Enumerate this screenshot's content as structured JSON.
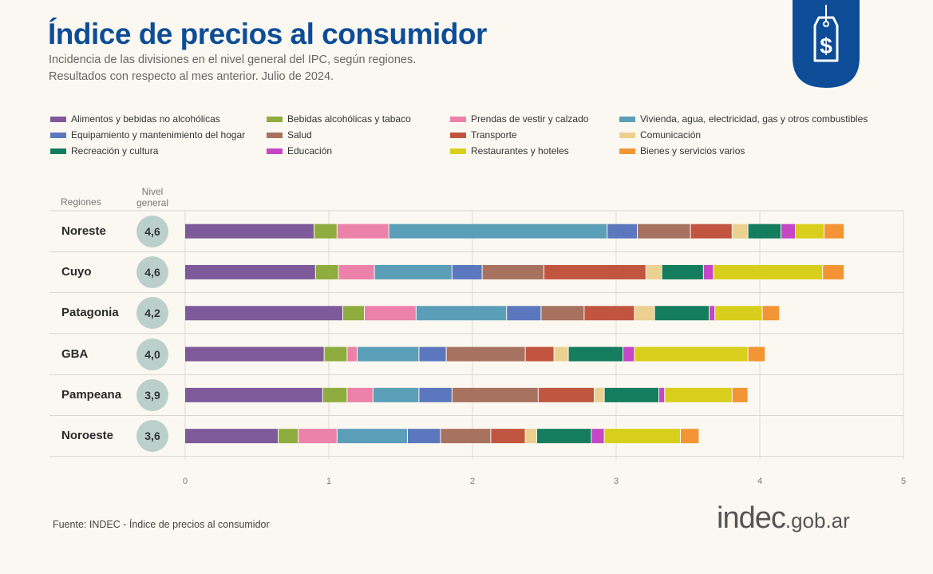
{
  "title": "Índice de precios al consumidor",
  "subtitle_1": "Incidencia de las divisiones en el nivel general del IPC, según regiones.",
  "subtitle_2": "Resultados con respecto al mes anterior. Julio de 2024.",
  "badge_icon": "price-tag-dollar-icon",
  "header": {
    "regions": "Regiones",
    "level_1": "Nivel",
    "level_2": "general"
  },
  "source": "Fuente: INDEC - Índice de precios al consumidor",
  "logo": {
    "main": "indec",
    "suffix": ".gob.ar"
  },
  "colors": {
    "title": "#0d4d98",
    "badge": "#0d4d98",
    "circle": "#bcd0cb"
  },
  "chart_data": {
    "type": "bar",
    "orientation": "horizontal",
    "stacked": true,
    "xlim": [
      0,
      5
    ],
    "xticks": [
      "0",
      "1",
      "2",
      "3",
      "4",
      "5"
    ],
    "grid": true,
    "legend_position": "top",
    "categories": [
      "Noreste",
      "Cuyo",
      "Patagonia",
      "GBA",
      "Pampeana",
      "Noroeste"
    ],
    "totals": [
      "4,6",
      "4,6",
      "4,2",
      "4,0",
      "3,9",
      "3,6"
    ],
    "series": [
      {
        "name": "Alimentos y bebidas no alcohólicas",
        "color": "#7e5a9b",
        "values": [
          0.9,
          0.91,
          1.1,
          0.97,
          0.96,
          0.65
        ]
      },
      {
        "name": "Bebidas alcohólicas y tabaco",
        "color": "#8fad3f",
        "values": [
          0.16,
          0.16,
          0.15,
          0.16,
          0.17,
          0.14
        ]
      },
      {
        "name": "Prendas de vestir y calzado",
        "color": "#ec81a9",
        "values": [
          0.36,
          0.25,
          0.36,
          0.07,
          0.18,
          0.27
        ]
      },
      {
        "name": "Vivienda, agua, electricidad, gas y otros combustibles",
        "color": "#5b9eb8",
        "values": [
          1.52,
          0.54,
          0.63,
          0.43,
          0.32,
          0.49
        ]
      },
      {
        "name": "Equipamiento y mantenimiento del hogar",
        "color": "#5b78bf",
        "values": [
          0.21,
          0.21,
          0.24,
          0.19,
          0.23,
          0.23
        ]
      },
      {
        "name": "Salud",
        "color": "#a87260",
        "values": [
          0.37,
          0.43,
          0.3,
          0.55,
          0.6,
          0.35
        ]
      },
      {
        "name": "Transporte",
        "color": "#c25540",
        "values": [
          0.29,
          0.71,
          0.35,
          0.2,
          0.39,
          0.24
        ]
      },
      {
        "name": "Comunicación",
        "color": "#ecd08f",
        "values": [
          0.11,
          0.11,
          0.14,
          0.1,
          0.07,
          0.08
        ]
      },
      {
        "name": "Recreación y cultura",
        "color": "#137d5d",
        "values": [
          0.23,
          0.29,
          0.38,
          0.38,
          0.38,
          0.38
        ]
      },
      {
        "name": "Educación",
        "color": "#c646c6",
        "values": [
          0.1,
          0.07,
          0.04,
          0.08,
          0.04,
          0.09
        ]
      },
      {
        "name": "Restaurantes y hoteles",
        "color": "#d8cf1c",
        "values": [
          0.2,
          0.76,
          0.33,
          0.79,
          0.47,
          0.53
        ]
      },
      {
        "name": "Bienes y servicios varios",
        "color": "#f39534",
        "values": [
          0.14,
          0.15,
          0.12,
          0.12,
          0.11,
          0.13
        ]
      }
    ]
  }
}
